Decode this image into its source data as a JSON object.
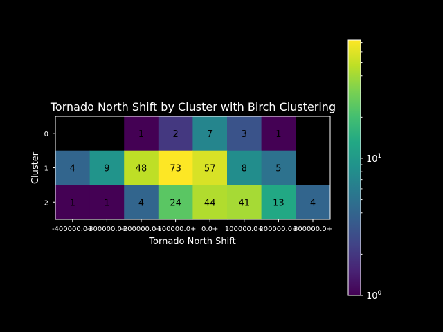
{
  "chart_data": {
    "type": "heatmap",
    "title": "Tornado North Shift by Cluster with Birch Clustering",
    "xlabel": "Tornado North Shift",
    "ylabel": "Cluster",
    "x_categories": [
      "-400000.0+",
      "-300000.0+",
      "-200000.0+",
      "-100000.0+",
      "0.0+",
      "100000.0+",
      "200000.0+",
      "300000.0+"
    ],
    "y_categories": [
      "0",
      "1",
      "2"
    ],
    "values": [
      [
        null,
        null,
        1,
        2,
        7,
        3,
        1,
        null
      ],
      [
        4,
        9,
        48,
        73,
        57,
        8,
        5,
        null
      ],
      [
        1,
        1,
        4,
        24,
        44,
        41,
        13,
        4
      ]
    ],
    "colorbar": {
      "scale": "log",
      "range": [
        1,
        73
      ],
      "colormap": "viridis",
      "tick_labels": [
        "10^0",
        "10^1"
      ]
    },
    "grid": false
  },
  "colors": {
    "background": "#000000",
    "text": "#ffffff",
    "cell_text": "#000000",
    "empty_cell": "#000000"
  }
}
